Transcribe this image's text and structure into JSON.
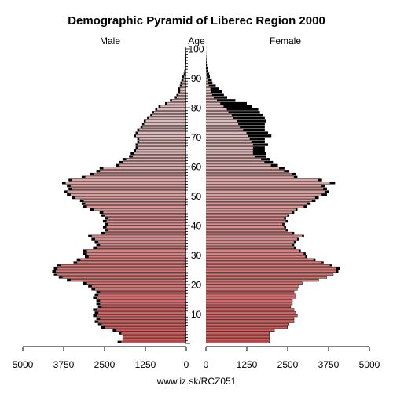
{
  "chart_data": {
    "type": "bar",
    "subtype": "population-pyramid",
    "title": "Demographic Pyramid of Liberec Region 2000",
    "left_header": "Male",
    "center_header": "Age",
    "right_header": "Female",
    "source": "www.iz.sk/RCZ051",
    "x_ticks_left": [
      "5000",
      "3750",
      "2500",
      "1250",
      "0"
    ],
    "x_ticks_right": [
      "0",
      "1250",
      "2500",
      "3750",
      "5000"
    ],
    "xlim": [
      0,
      5000
    ],
    "age_ticks": [
      "10",
      "20",
      "30",
      "40",
      "50",
      "60",
      "70",
      "80",
      "90",
      "100"
    ],
    "ages": [
      0,
      1,
      2,
      3,
      4,
      5,
      6,
      7,
      8,
      9,
      10,
      11,
      12,
      13,
      14,
      15,
      16,
      17,
      18,
      19,
      20,
      21,
      22,
      23,
      24,
      25,
      26,
      27,
      28,
      29,
      30,
      31,
      32,
      33,
      34,
      35,
      36,
      37,
      38,
      39,
      40,
      41,
      42,
      43,
      44,
      45,
      46,
      47,
      48,
      49,
      50,
      51,
      52,
      53,
      54,
      55,
      56,
      57,
      58,
      59,
      60,
      61,
      62,
      63,
      64,
      65,
      66,
      67,
      68,
      69,
      70,
      71,
      72,
      73,
      74,
      75,
      76,
      77,
      78,
      79,
      80,
      81,
      82,
      83,
      84,
      85,
      86,
      87,
      88,
      89,
      90,
      91,
      92,
      93,
      94,
      95,
      96,
      97,
      98,
      99,
      100
    ],
    "series": [
      {
        "name": "Male",
        "color": "#000000",
        "values": [
          2100,
          1950,
          1950,
          2050,
          2250,
          2600,
          2700,
          2800,
          2750,
          2850,
          2800,
          2850,
          2700,
          2750,
          2750,
          2850,
          2800,
          2750,
          2900,
          3000,
          3150,
          3650,
          3900,
          4050,
          4100,
          4050,
          3950,
          3450,
          3350,
          3100,
          3150,
          3150,
          2850,
          2750,
          2800,
          2900,
          3000,
          2600,
          2500,
          2550,
          2500,
          2550,
          2500,
          2600,
          2650,
          2950,
          3150,
          3200,
          3250,
          3500,
          3650,
          3750,
          3600,
          3650,
          3800,
          3600,
          3200,
          2950,
          2750,
          2650,
          2150,
          2050,
          1950,
          1750,
          1700,
          1600,
          1550,
          1550,
          1500,
          1500,
          1600,
          1550,
          1500,
          1400,
          1350,
          1300,
          1200,
          1100,
          1050,
          950,
          850,
          650,
          500,
          350,
          300,
          250,
          250,
          200,
          180,
          150,
          120,
          80,
          60,
          40,
          30,
          20,
          15,
          10,
          6,
          3,
          2
        ]
      },
      {
        "name": "Female",
        "color": "#000000",
        "values": [
          1950,
          1950,
          1950,
          1950,
          2100,
          2500,
          2550,
          2700,
          2700,
          2800,
          2750,
          2700,
          2600,
          2650,
          2650,
          2750,
          2750,
          2700,
          2800,
          2850,
          2950,
          3450,
          3700,
          3900,
          4050,
          4100,
          3850,
          3600,
          3350,
          3100,
          3050,
          2900,
          2750,
          2700,
          2750,
          2850,
          3000,
          2700,
          2500,
          2450,
          2400,
          2500,
          2450,
          2550,
          2700,
          2800,
          3100,
          3200,
          3350,
          3450,
          3700,
          3750,
          3700,
          3650,
          3950,
          3550,
          2800,
          2750,
          2550,
          2400,
          2200,
          2050,
          1950,
          1850,
          1850,
          1800,
          1800,
          1900,
          1800,
          1800,
          2000,
          1900,
          1800,
          1800,
          1800,
          1850,
          1800,
          1750,
          1650,
          1600,
          1400,
          1250,
          900,
          650,
          550,
          500,
          400,
          300,
          200,
          180,
          120,
          100,
          70,
          50,
          30,
          20,
          15,
          10,
          6,
          3,
          2
        ]
      }
    ],
    "inner_values": {
      "male": [
        2000,
        1950,
        1950,
        2000,
        2150,
        2500,
        2600,
        2700,
        2650,
        2750,
        2700,
        2750,
        2600,
        2650,
        2650,
        2750,
        2700,
        2650,
        2800,
        2900,
        3050,
        3550,
        3800,
        3950,
        4000,
        3950,
        3850,
        3350,
        3250,
        3000,
        3050,
        3050,
        2750,
        2650,
        2700,
        2800,
        2900,
        2500,
        2400,
        2450,
        2400,
        2450,
        2400,
        2500,
        2550,
        2850,
        3050,
        3100,
        3150,
        3400,
        3550,
        3650,
        3500,
        3550,
        3700,
        3500,
        3100,
        2850,
        2650,
        2550,
        2050,
        1950,
        1850,
        1650,
        1600,
        1550,
        1500,
        1500,
        1450,
        1450,
        1550,
        1500,
        1450,
        1350,
        1300,
        1250,
        1150,
        1050,
        1000,
        900,
        800,
        600,
        450,
        300,
        250,
        200,
        200,
        150,
        130,
        100,
        80,
        50,
        40,
        25,
        20,
        12,
        8,
        5,
        3,
        1,
        1
      ],
      "female": [
        1950,
        1950,
        1950,
        1950,
        2100,
        2500,
        2550,
        2700,
        2700,
        2800,
        2750,
        2700,
        2600,
        2650,
        2650,
        2750,
        2750,
        2700,
        2800,
        2850,
        2950,
        3450,
        3700,
        3900,
        4000,
        4000,
        3800,
        3550,
        3300,
        3050,
        3000,
        2850,
        2700,
        2650,
        2700,
        2800,
        2950,
        2650,
        2450,
        2400,
        2350,
        2450,
        2400,
        2500,
        2650,
        2750,
        3000,
        3100,
        3250,
        3350,
        3550,
        3650,
        3600,
        3550,
        3800,
        3450,
        2700,
        2650,
        2400,
        2250,
        2000,
        1800,
        1700,
        1500,
        1450,
        1450,
        1450,
        1450,
        1400,
        1350,
        1300,
        1250,
        1150,
        1050,
        1000,
        950,
        850,
        800,
        700,
        650,
        550,
        450,
        350,
        250,
        200,
        180,
        150,
        100,
        80,
        60,
        40,
        30,
        20,
        15,
        10,
        6,
        4,
        3,
        2,
        1,
        1
      ]
    },
    "colors": {
      "male_young": "#e05050",
      "male_old": "#e0b8b8",
      "female_young": "#e05050",
      "female_old": "#e0b8b8",
      "excess": "#000000",
      "background": "#ffffff"
    }
  }
}
